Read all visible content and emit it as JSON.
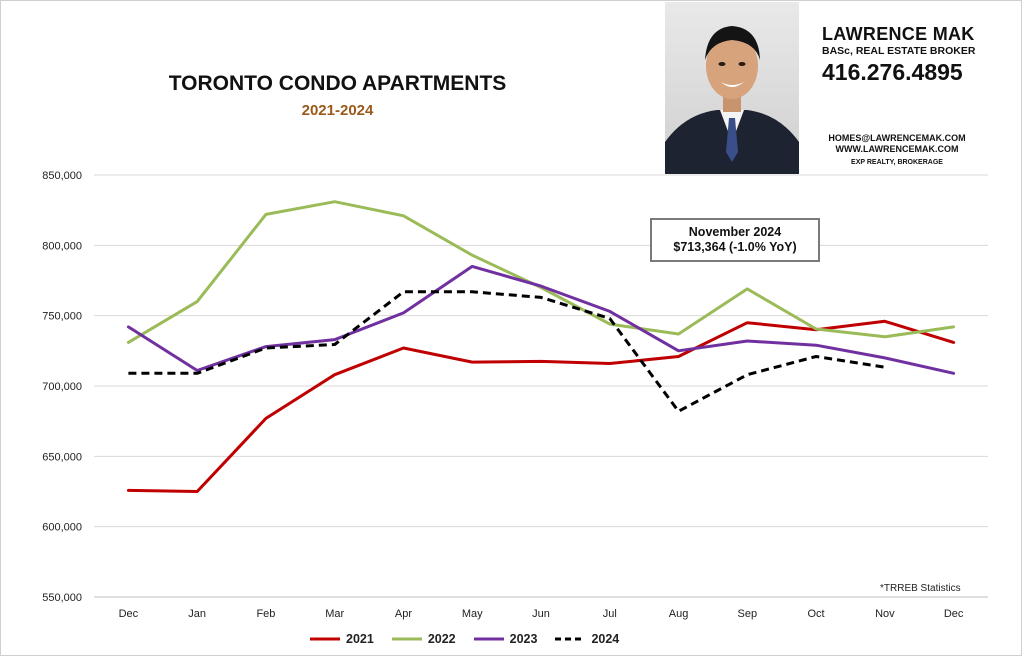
{
  "header": {
    "title": "TORONTO CONDO APARTMENTS",
    "subtitle": "2021-2024"
  },
  "agent": {
    "name": "LAWRENCE MAK",
    "role": "BASc, REAL ESTATE BROKER",
    "phone": "416.276.4895",
    "email": "HOMES@LAWRENCEMAK.COM",
    "website": "WWW.LAWRENCEMAK.COM",
    "brokerage": "EXP REALTY, BROKERAGE"
  },
  "callout": {
    "line1": "November 2024",
    "line2": "$713,364 (-1.0% YoY)"
  },
  "source_note": "*TRREB Statistics",
  "colors": {
    "2021": "#c00000",
    "2022": "#9bbb59",
    "2023": "#7030a0",
    "2024": "#000000"
  },
  "chart_data": {
    "type": "line",
    "title": "TORONTO CONDO APARTMENTS",
    "subtitle": "2021-2024",
    "categories": [
      "Dec",
      "Jan",
      "Feb",
      "Mar",
      "Apr",
      "May",
      "Jun",
      "Jul",
      "Aug",
      "Sep",
      "Oct",
      "Nov",
      "Dec"
    ],
    "y_ticks": [
      "550,000",
      "600,000",
      "650,000",
      "700,000",
      "750,000",
      "800,000",
      "850,000"
    ],
    "ylim": [
      550000,
      850000
    ],
    "grid": "horizontal",
    "legend_position": "bottom",
    "series": [
      {
        "name": "2021",
        "color": "#c00000",
        "style": "solid",
        "values": [
          625800,
          625000,
          677000,
          708000,
          727000,
          717000,
          717500,
          716000,
          721000,
          745000,
          740000,
          746000,
          731000
        ]
      },
      {
        "name": "2022",
        "color": "#9bbb59",
        "style": "solid",
        "values": [
          731000,
          760000,
          822000,
          831000,
          821000,
          793000,
          770000,
          744000,
          737000,
          769000,
          740500,
          735000,
          742000
        ]
      },
      {
        "name": "2023",
        "color": "#7030a0",
        "style": "solid",
        "values": [
          742000,
          711000,
          728000,
          733000,
          752000,
          785000,
          771000,
          753000,
          725000,
          732000,
          729000,
          720000,
          709000
        ]
      },
      {
        "name": "2024",
        "color": "#000000",
        "style": "dashed",
        "values": [
          709000,
          709000,
          727000,
          729500,
          767000,
          767000,
          763000,
          748000,
          682000,
          708000,
          721000,
          713364,
          null
        ]
      }
    ]
  }
}
